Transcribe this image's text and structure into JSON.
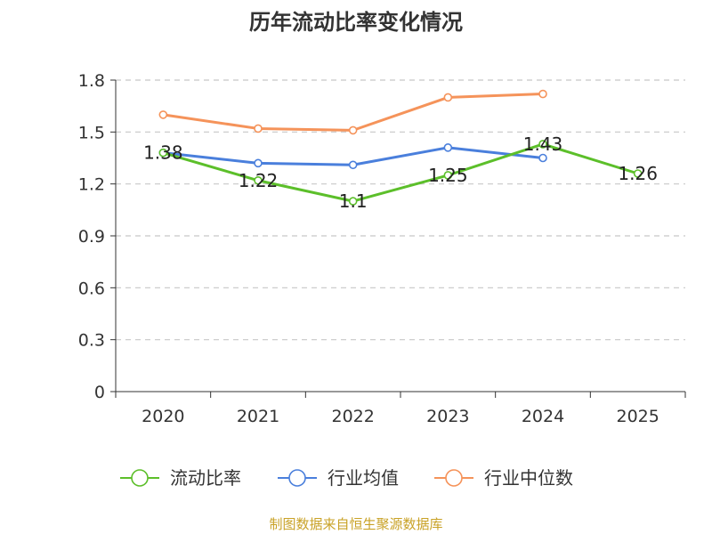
{
  "chart_data": {
    "type": "line",
    "title": "历年流动比率变化情况",
    "categories": [
      "2020",
      "2021",
      "2022",
      "2023",
      "2024",
      "2025"
    ],
    "ylim": [
      0,
      1.8
    ],
    "yticks": [
      0,
      0.3,
      0.6,
      0.9,
      1.2,
      1.5,
      1.8
    ],
    "ytick_labels": [
      "0",
      "0.3",
      "0.6",
      "0.9",
      "1.2",
      "1.5",
      "1.8"
    ],
    "grid": true,
    "legend_position": "bottom",
    "series": [
      {
        "name": "流动比率",
        "color": "#5cbf2a",
        "values": [
          1.38,
          1.22,
          1.1,
          1.25,
          1.43,
          1.26
        ],
        "labels": [
          "1.38",
          "1.22",
          "1.1",
          "1.25",
          "1.43",
          "1.26"
        ]
      },
      {
        "name": "行业均值",
        "color": "#4a7fdc",
        "values": [
          1.38,
          1.32,
          1.31,
          1.41,
          1.35,
          null
        ]
      },
      {
        "name": "行业中位数",
        "color": "#f5935a",
        "values": [
          1.6,
          1.52,
          1.51,
          1.7,
          1.72,
          null
        ]
      }
    ]
  },
  "footer": {
    "source": "制图数据来自恒生聚源数据库"
  }
}
